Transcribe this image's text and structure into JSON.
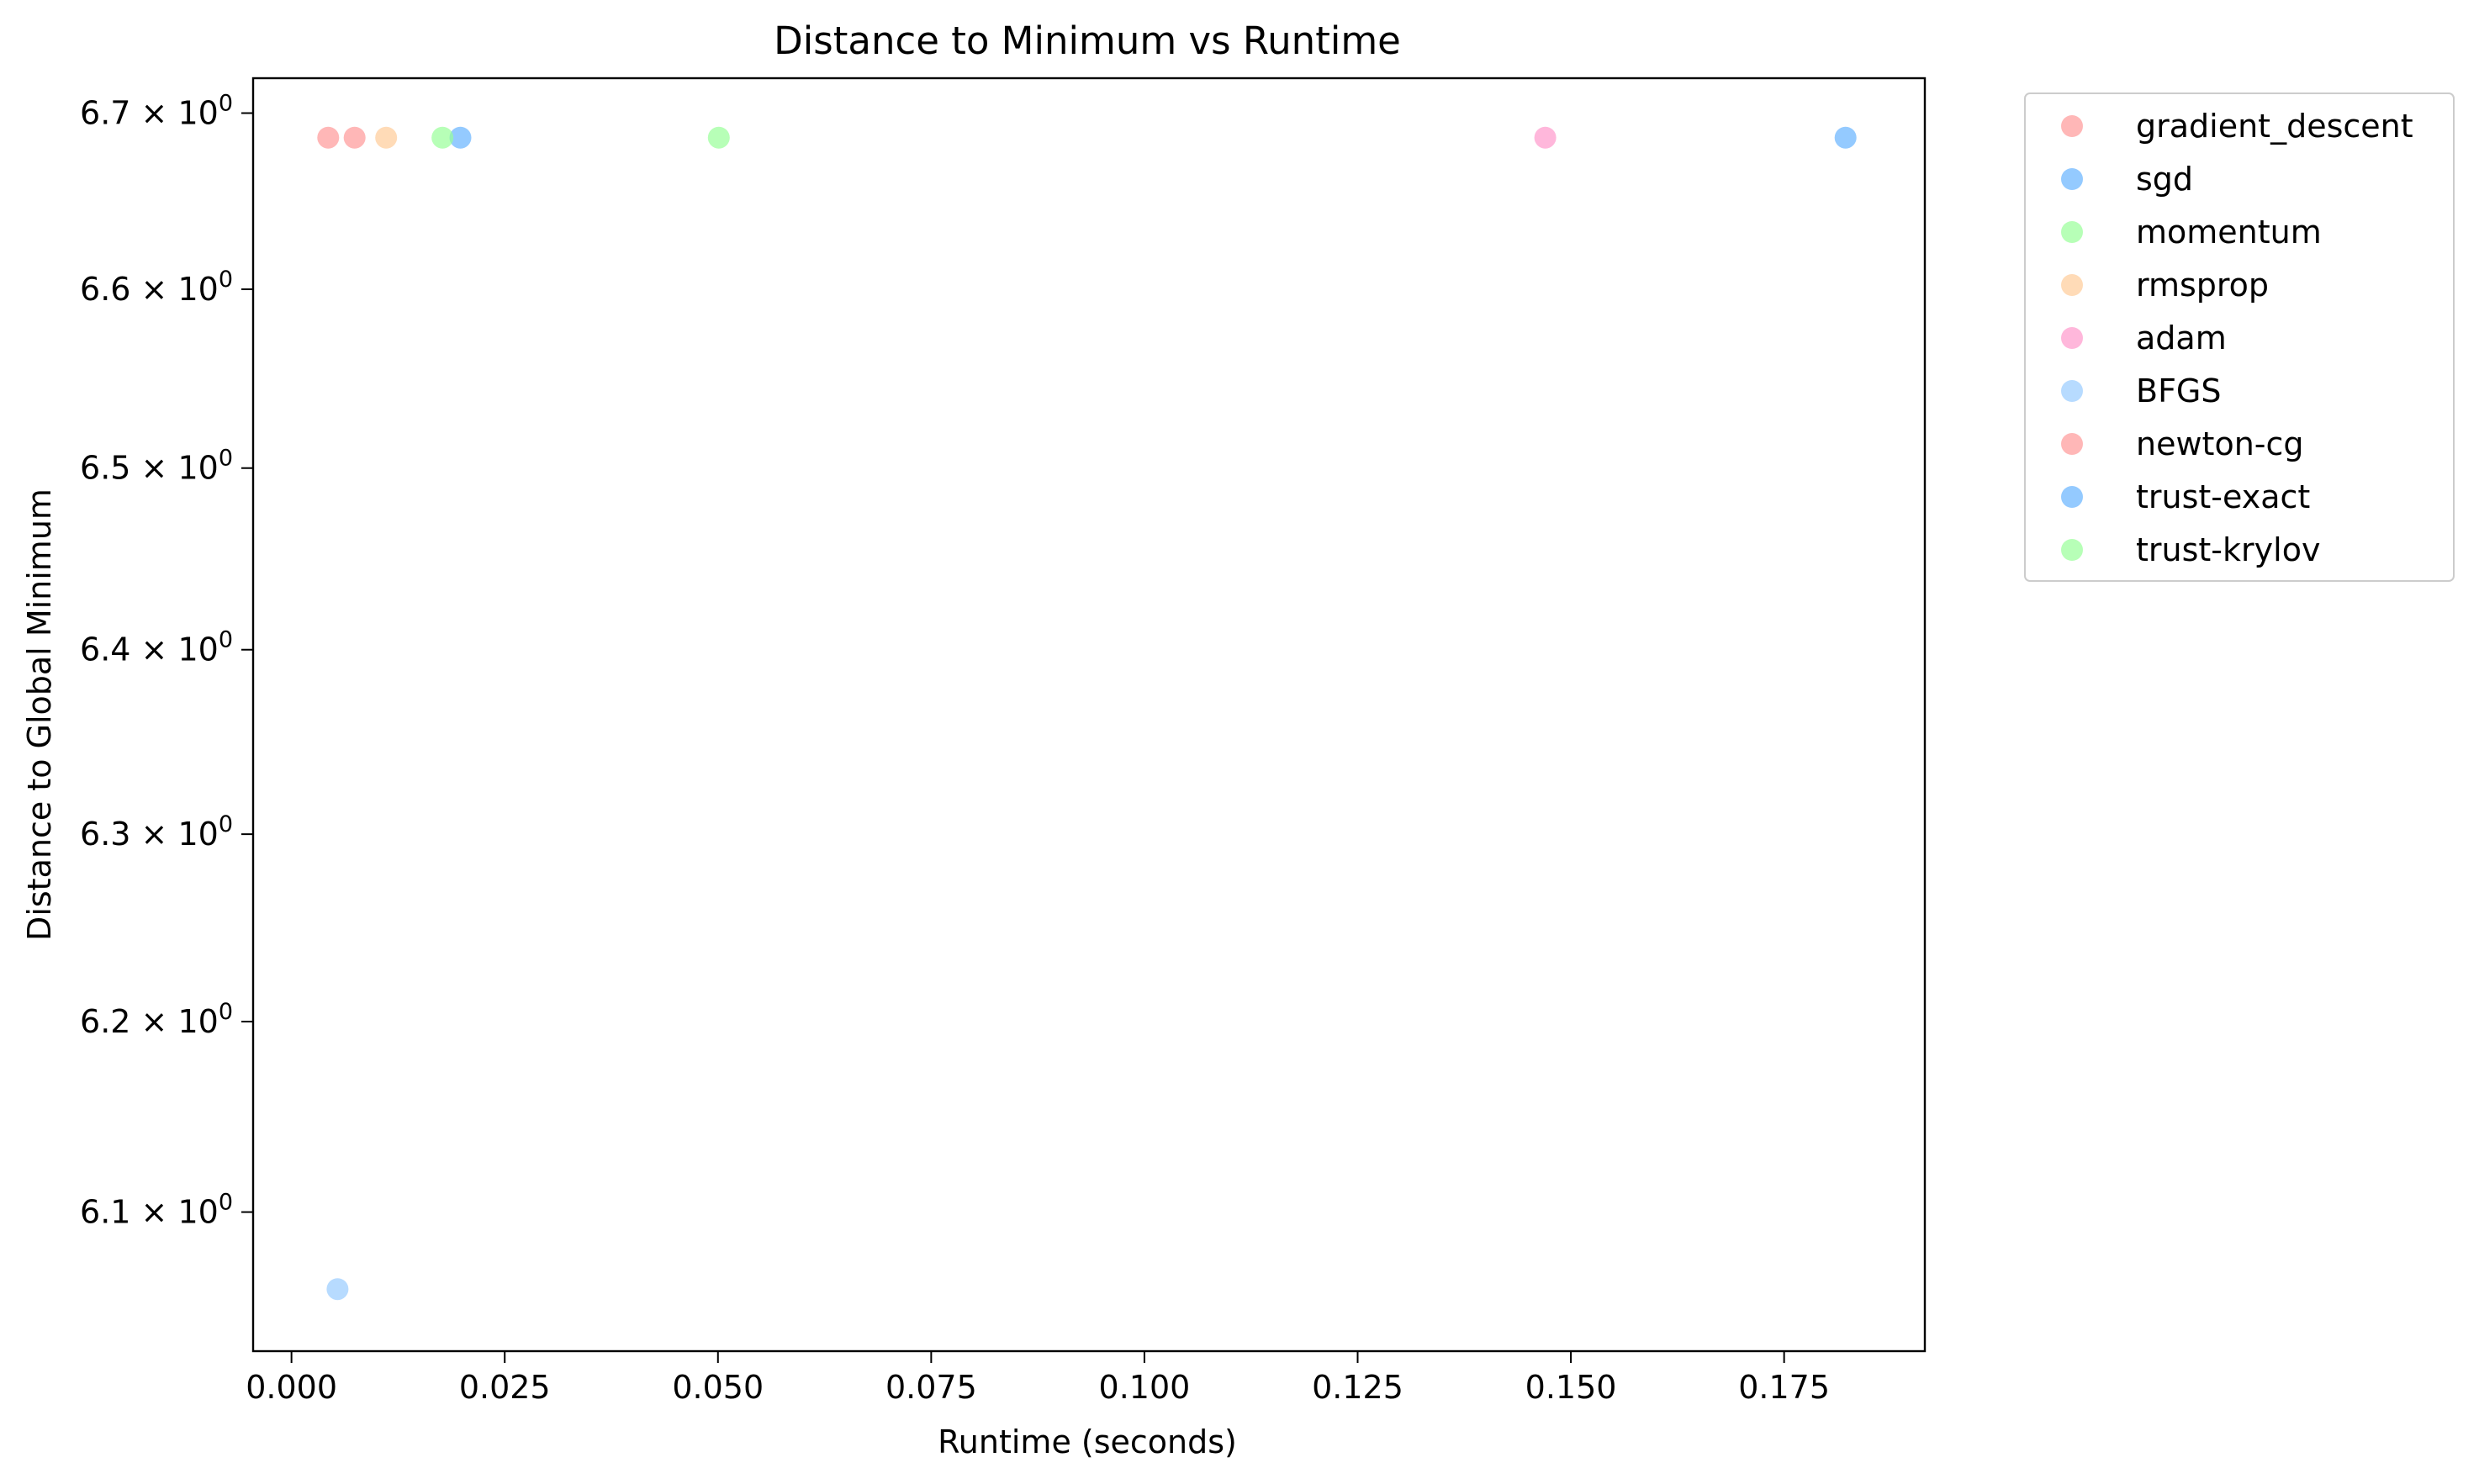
{
  "chart_data": {
    "type": "scatter",
    "title": "Distance to Minimum vs Runtime",
    "xlabel": "Runtime (seconds)",
    "ylabel": "Distance to Global Minimum",
    "xlim": [
      -0.0045,
      0.1915
    ],
    "ylim": [
      6.028,
      6.72
    ],
    "yscale": "log",
    "x_ticks": [
      {
        "value": 0.0,
        "label": "0.000"
      },
      {
        "value": 0.025,
        "label": "0.025"
      },
      {
        "value": 0.05,
        "label": "0.050"
      },
      {
        "value": 0.075,
        "label": "0.075"
      },
      {
        "value": 0.1,
        "label": "0.100"
      },
      {
        "value": 0.125,
        "label": "0.125"
      },
      {
        "value": 0.15,
        "label": "0.150"
      },
      {
        "value": 0.175,
        "label": "0.175"
      }
    ],
    "y_ticks": [
      {
        "value": 6.1,
        "mantissa": "6.1",
        "times": "×",
        "base": "10",
        "exponent": "0"
      },
      {
        "value": 6.2,
        "mantissa": "6.2",
        "times": "×",
        "base": "10",
        "exponent": "0"
      },
      {
        "value": 6.3,
        "mantissa": "6.3",
        "times": "×",
        "base": "10",
        "exponent": "0"
      },
      {
        "value": 6.4,
        "mantissa": "6.4",
        "times": "×",
        "base": "10",
        "exponent": "0"
      },
      {
        "value": 6.5,
        "mantissa": "6.5",
        "times": "×",
        "base": "10",
        "exponent": "0"
      },
      {
        "value": 6.6,
        "mantissa": "6.6",
        "times": "×",
        "base": "10",
        "exponent": "0"
      },
      {
        "value": 6.7,
        "mantissa": "6.7",
        "times": "×",
        "base": "10",
        "exponent": "0"
      }
    ],
    "grid": false,
    "legend_position": "outside-right-top",
    "series": [
      {
        "name": "gradient_descent",
        "color": "#ff9999",
        "x": [
          0.0074
        ],
        "y": [
          6.686
        ]
      },
      {
        "name": "sgd",
        "color": "#66b3ff",
        "x": [
          0.0198
        ],
        "y": [
          6.686
        ]
      },
      {
        "name": "momentum",
        "color": "#99ff99",
        "x": [
          0.0501
        ],
        "y": [
          6.686
        ]
      },
      {
        "name": "rmsprop",
        "color": "#ffcc99",
        "x": [
          0.0111
        ],
        "y": [
          6.686
        ]
      },
      {
        "name": "adam",
        "color": "#ff99cc",
        "x": [
          0.147
        ],
        "y": [
          6.686
        ]
      },
      {
        "name": "BFGS",
        "color": "#99ccff",
        "x": [
          0.0054
        ],
        "y": [
          6.06
        ]
      },
      {
        "name": "newton-cg",
        "color": "#ff9999",
        "x": [
          0.0043
        ],
        "y": [
          6.686
        ]
      },
      {
        "name": "trust-exact",
        "color": "#66b3ff",
        "x": [
          0.1822
        ],
        "y": [
          6.686
        ]
      },
      {
        "name": "trust-krylov",
        "color": "#99ff99",
        "x": [
          0.0177
        ],
        "y": [
          6.686
        ]
      }
    ]
  }
}
